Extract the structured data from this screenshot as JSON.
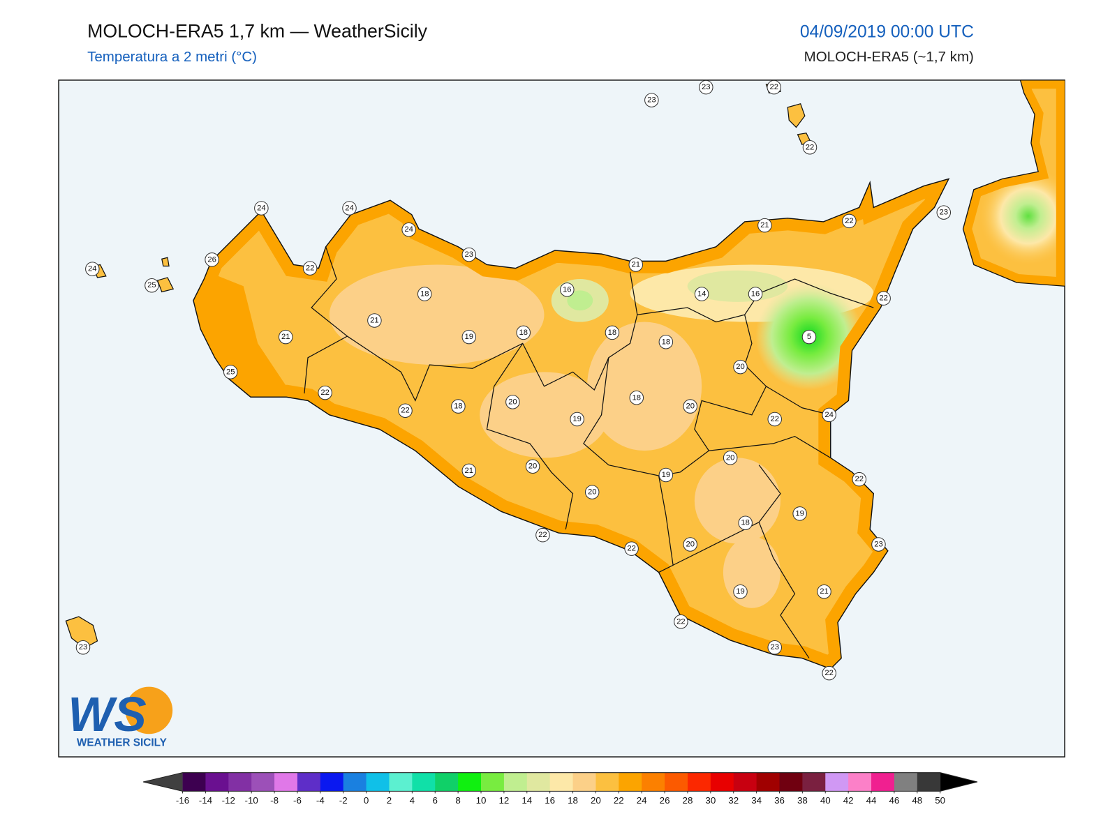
{
  "header": {
    "title": "MOLOCH-ERA5 1,7 km — WeatherSicily",
    "subtitle": "Temperatura a 2 metri (°C)",
    "datetime": "04/09/2019 00:00 UTC",
    "model": "MOLOCH-ERA5 (~1,7 km)"
  },
  "map": {
    "values": [
      23,
      23,
      22,
      22,
      24,
      24,
      24,
      23,
      26,
      22,
      24,
      25,
      18,
      16,
      21,
      21,
      22,
      23,
      14,
      16,
      22,
      21,
      21,
      19,
      18,
      18,
      18,
      5,
      20,
      25,
      22,
      22,
      18,
      20,
      19,
      18,
      20,
      22,
      24,
      20,
      21,
      20,
      19,
      22,
      20,
      19,
      18,
      22,
      22,
      20,
      23,
      19,
      21,
      22,
      23,
      22,
      23
    ]
  },
  "colorbar": {
    "ticks": [
      -16,
      -14,
      -12,
      -10,
      -8,
      -6,
      -4,
      -2,
      0,
      2,
      4,
      6,
      8,
      10,
      12,
      14,
      16,
      18,
      20,
      22,
      24,
      26,
      28,
      30,
      32,
      34,
      36,
      38,
      40,
      42,
      44,
      46,
      48,
      50
    ],
    "under_color": "#404040",
    "over_color": "#000000",
    "colors": [
      "#3d0050",
      "#6a1090",
      "#8230a4",
      "#9c50b8",
      "#e078e8",
      "#5e2ec8",
      "#0a18f0",
      "#1a80e0",
      "#10c0e8",
      "#5cf0d0",
      "#10e0a8",
      "#10d068",
      "#10f010",
      "#78ec40",
      "#c0ee90",
      "#e0e8a0",
      "#fde8a8",
      "#fcd088",
      "#fcc040",
      "#fca400",
      "#fc8000",
      "#fc5a00",
      "#fc2800",
      "#e80000",
      "#c80010",
      "#a00000",
      "#700010",
      "#7a2040",
      "#d098f4",
      "#fc80c8",
      "#f02090",
      "#808080",
      "#383838"
    ]
  },
  "logo": {
    "mark": "WS",
    "text": "WEATHER SICILY"
  }
}
